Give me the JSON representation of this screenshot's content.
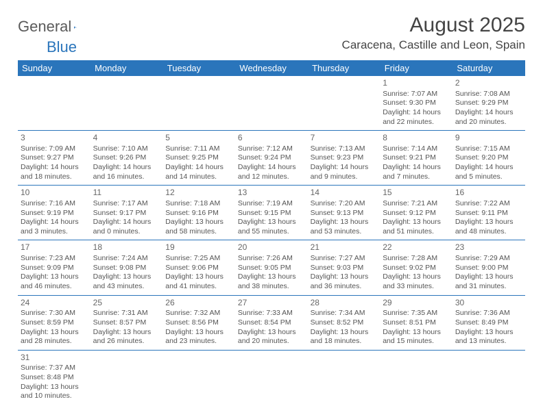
{
  "brand": {
    "part1": "General",
    "part2": "Blue"
  },
  "title": "August 2025",
  "location": "Caracena, Castille and Leon, Spain",
  "colors": {
    "accent": "#2a75bb",
    "text": "#444",
    "cell_text": "#555",
    "bg": "#ffffff"
  },
  "weekdays": [
    "Sunday",
    "Monday",
    "Tuesday",
    "Wednesday",
    "Thursday",
    "Friday",
    "Saturday"
  ],
  "weeks": [
    [
      null,
      null,
      null,
      null,
      null,
      {
        "d": "1",
        "sr": "7:07 AM",
        "ss": "9:30 PM",
        "dl": "14 hours and 22 minutes."
      },
      {
        "d": "2",
        "sr": "7:08 AM",
        "ss": "9:29 PM",
        "dl": "14 hours and 20 minutes."
      }
    ],
    [
      {
        "d": "3",
        "sr": "7:09 AM",
        "ss": "9:27 PM",
        "dl": "14 hours and 18 minutes."
      },
      {
        "d": "4",
        "sr": "7:10 AM",
        "ss": "9:26 PM",
        "dl": "14 hours and 16 minutes."
      },
      {
        "d": "5",
        "sr": "7:11 AM",
        "ss": "9:25 PM",
        "dl": "14 hours and 14 minutes."
      },
      {
        "d": "6",
        "sr": "7:12 AM",
        "ss": "9:24 PM",
        "dl": "14 hours and 12 minutes."
      },
      {
        "d": "7",
        "sr": "7:13 AM",
        "ss": "9:23 PM",
        "dl": "14 hours and 9 minutes."
      },
      {
        "d": "8",
        "sr": "7:14 AM",
        "ss": "9:21 PM",
        "dl": "14 hours and 7 minutes."
      },
      {
        "d": "9",
        "sr": "7:15 AM",
        "ss": "9:20 PM",
        "dl": "14 hours and 5 minutes."
      }
    ],
    [
      {
        "d": "10",
        "sr": "7:16 AM",
        "ss": "9:19 PM",
        "dl": "14 hours and 3 minutes."
      },
      {
        "d": "11",
        "sr": "7:17 AM",
        "ss": "9:17 PM",
        "dl": "14 hours and 0 minutes."
      },
      {
        "d": "12",
        "sr": "7:18 AM",
        "ss": "9:16 PM",
        "dl": "13 hours and 58 minutes."
      },
      {
        "d": "13",
        "sr": "7:19 AM",
        "ss": "9:15 PM",
        "dl": "13 hours and 55 minutes."
      },
      {
        "d": "14",
        "sr": "7:20 AM",
        "ss": "9:13 PM",
        "dl": "13 hours and 53 minutes."
      },
      {
        "d": "15",
        "sr": "7:21 AM",
        "ss": "9:12 PM",
        "dl": "13 hours and 51 minutes."
      },
      {
        "d": "16",
        "sr": "7:22 AM",
        "ss": "9:11 PM",
        "dl": "13 hours and 48 minutes."
      }
    ],
    [
      {
        "d": "17",
        "sr": "7:23 AM",
        "ss": "9:09 PM",
        "dl": "13 hours and 46 minutes."
      },
      {
        "d": "18",
        "sr": "7:24 AM",
        "ss": "9:08 PM",
        "dl": "13 hours and 43 minutes."
      },
      {
        "d": "19",
        "sr": "7:25 AM",
        "ss": "9:06 PM",
        "dl": "13 hours and 41 minutes."
      },
      {
        "d": "20",
        "sr": "7:26 AM",
        "ss": "9:05 PM",
        "dl": "13 hours and 38 minutes."
      },
      {
        "d": "21",
        "sr": "7:27 AM",
        "ss": "9:03 PM",
        "dl": "13 hours and 36 minutes."
      },
      {
        "d": "22",
        "sr": "7:28 AM",
        "ss": "9:02 PM",
        "dl": "13 hours and 33 minutes."
      },
      {
        "d": "23",
        "sr": "7:29 AM",
        "ss": "9:00 PM",
        "dl": "13 hours and 31 minutes."
      }
    ],
    [
      {
        "d": "24",
        "sr": "7:30 AM",
        "ss": "8:59 PM",
        "dl": "13 hours and 28 minutes."
      },
      {
        "d": "25",
        "sr": "7:31 AM",
        "ss": "8:57 PM",
        "dl": "13 hours and 26 minutes."
      },
      {
        "d": "26",
        "sr": "7:32 AM",
        "ss": "8:56 PM",
        "dl": "13 hours and 23 minutes."
      },
      {
        "d": "27",
        "sr": "7:33 AM",
        "ss": "8:54 PM",
        "dl": "13 hours and 20 minutes."
      },
      {
        "d": "28",
        "sr": "7:34 AM",
        "ss": "8:52 PM",
        "dl": "13 hours and 18 minutes."
      },
      {
        "d": "29",
        "sr": "7:35 AM",
        "ss": "8:51 PM",
        "dl": "13 hours and 15 minutes."
      },
      {
        "d": "30",
        "sr": "7:36 AM",
        "ss": "8:49 PM",
        "dl": "13 hours and 13 minutes."
      }
    ],
    [
      {
        "d": "31",
        "sr": "7:37 AM",
        "ss": "8:48 PM",
        "dl": "13 hours and 10 minutes."
      },
      null,
      null,
      null,
      null,
      null,
      null
    ]
  ],
  "labels": {
    "sunrise": "Sunrise: ",
    "sunset": "Sunset: ",
    "daylight": "Daylight: "
  }
}
